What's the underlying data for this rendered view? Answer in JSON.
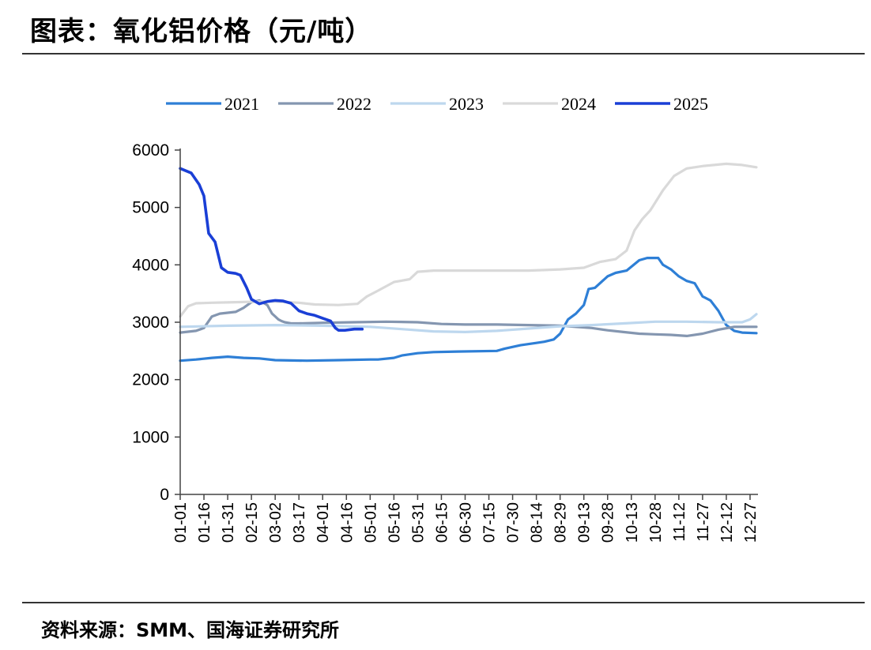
{
  "header": {
    "title": "图表：氧化铝价格（元/吨）"
  },
  "footer": {
    "source": "资料来源：SMM、国海证券研究所"
  },
  "chart_data": {
    "type": "line",
    "title": "氧化铝价格（元/吨）",
    "xlabel": "",
    "ylabel": "",
    "ylim": [
      0,
      6000
    ],
    "yticks": [
      0,
      1000,
      2000,
      3000,
      4000,
      5000,
      6000
    ],
    "x_day_range": [
      0,
      364
    ],
    "xticks": [
      {
        "day": 0,
        "label": "01-01"
      },
      {
        "day": 15,
        "label": "01-16"
      },
      {
        "day": 30,
        "label": "01-31"
      },
      {
        "day": 45,
        "label": "02-15"
      },
      {
        "day": 60,
        "label": "03-02"
      },
      {
        "day": 75,
        "label": "03-17"
      },
      {
        "day": 90,
        "label": "04-01"
      },
      {
        "day": 105,
        "label": "04-16"
      },
      {
        "day": 120,
        "label": "05-01"
      },
      {
        "day": 135,
        "label": "05-16"
      },
      {
        "day": 150,
        "label": "05-31"
      },
      {
        "day": 165,
        "label": "06-15"
      },
      {
        "day": 180,
        "label": "06-30"
      },
      {
        "day": 195,
        "label": "07-15"
      },
      {
        "day": 210,
        "label": "07-30"
      },
      {
        "day": 225,
        "label": "08-14"
      },
      {
        "day": 240,
        "label": "08-29"
      },
      {
        "day": 255,
        "label": "09-13"
      },
      {
        "day": 270,
        "label": "09-28"
      },
      {
        "day": 285,
        "label": "10-13"
      },
      {
        "day": 300,
        "label": "10-28"
      },
      {
        "day": 315,
        "label": "11-12"
      },
      {
        "day": 330,
        "label": "11-27"
      },
      {
        "day": 345,
        "label": "12-12"
      },
      {
        "day": 360,
        "label": "12-27"
      }
    ],
    "legend_position": "top-center",
    "series": [
      {
        "name": "2021",
        "color": "#2E7FD6",
        "x": [
          0,
          10,
          20,
          30,
          40,
          50,
          60,
          80,
          100,
          120,
          125,
          135,
          140,
          150,
          160,
          175,
          200,
          205,
          215,
          225,
          230,
          236,
          240,
          245,
          250,
          255,
          258,
          262,
          270,
          275,
          282,
          290,
          295,
          302,
          305,
          310,
          315,
          320,
          325,
          330,
          335,
          340,
          345,
          350,
          355,
          364
        ],
        "y": [
          2330,
          2350,
          2380,
          2400,
          2380,
          2370,
          2340,
          2330,
          2340,
          2350,
          2350,
          2380,
          2420,
          2460,
          2480,
          2490,
          2500,
          2540,
          2600,
          2640,
          2660,
          2700,
          2800,
          3050,
          3150,
          3300,
          3580,
          3600,
          3800,
          3860,
          3900,
          4080,
          4120,
          4120,
          4000,
          3920,
          3800,
          3720,
          3680,
          3450,
          3380,
          3200,
          2950,
          2850,
          2820,
          2810
        ]
      },
      {
        "name": "2022",
        "color": "#8496B0",
        "x": [
          0,
          10,
          15,
          20,
          25,
          35,
          40,
          45,
          50,
          55,
          58,
          60,
          62,
          64,
          66,
          68,
          70,
          75,
          90,
          110,
          130,
          150,
          165,
          180,
          200,
          220,
          240,
          260,
          270,
          280,
          290,
          300,
          310,
          320,
          330,
          340,
          350,
          364
        ],
        "y": [
          2820,
          2850,
          2900,
          3100,
          3150,
          3180,
          3250,
          3350,
          3380,
          3300,
          3150,
          3100,
          3050,
          3020,
          3000,
          2990,
          2980,
          2980,
          2990,
          3000,
          3010,
          3000,
          2970,
          2960,
          2960,
          2950,
          2940,
          2900,
          2860,
          2830,
          2800,
          2790,
          2780,
          2760,
          2800,
          2870,
          2920,
          2920
        ]
      },
      {
        "name": "2023",
        "color": "#BDD7EE",
        "x": [
          0,
          30,
          60,
          90,
          120,
          140,
          160,
          180,
          200,
          220,
          240,
          260,
          280,
          300,
          320,
          340,
          355,
          360,
          364
        ],
        "y": [
          2920,
          2940,
          2950,
          2940,
          2920,
          2880,
          2840,
          2830,
          2850,
          2890,
          2930,
          2950,
          2980,
          3010,
          3010,
          3000,
          3000,
          3050,
          3140
        ]
      },
      {
        "name": "2024",
        "color": "#D9D9D9",
        "x": [
          0,
          5,
          10,
          20,
          35,
          50,
          60,
          75,
          85,
          100,
          112,
          118,
          125,
          135,
          145,
          150,
          160,
          180,
          200,
          220,
          240,
          255,
          265,
          275,
          282,
          287,
          292,
          297,
          305,
          312,
          320,
          330,
          345,
          355,
          364
        ],
        "y": [
          3100,
          3280,
          3330,
          3340,
          3350,
          3360,
          3360,
          3340,
          3310,
          3300,
          3320,
          3450,
          3550,
          3700,
          3750,
          3880,
          3900,
          3900,
          3900,
          3900,
          3920,
          3950,
          4050,
          4100,
          4250,
          4600,
          4800,
          4950,
          5300,
          5550,
          5680,
          5720,
          5760,
          5740,
          5700
        ]
      },
      {
        "name": "2025",
        "color": "#1A3FD6",
        "x": [
          0,
          7,
          12,
          15,
          18,
          22,
          26,
          30,
          35,
          38,
          42,
          45,
          50,
          55,
          60,
          65,
          70,
          75,
          80,
          85,
          90,
          95,
          98,
          100,
          104,
          110,
          115
        ],
        "y": [
          5680,
          5600,
          5400,
          5200,
          4550,
          4400,
          3950,
          3870,
          3850,
          3820,
          3600,
          3400,
          3320,
          3360,
          3380,
          3370,
          3330,
          3200,
          3150,
          3120,
          3070,
          3020,
          2900,
          2860,
          2860,
          2880,
          2880
        ]
      }
    ]
  }
}
